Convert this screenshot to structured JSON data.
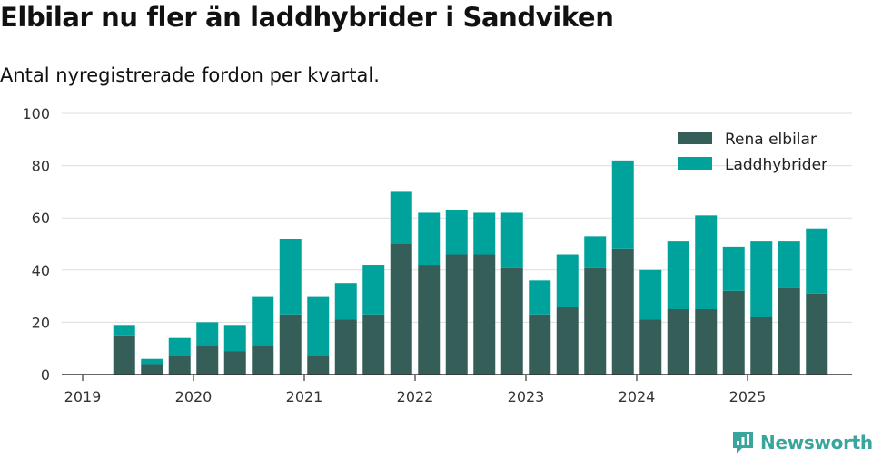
{
  "title": "Elbilar nu fler än laddhybrider i Sandviken",
  "subtitle": "Antal nyregistrerade fordon per kvartal.",
  "brand": "Newsworthy",
  "colors": {
    "elbilar": "#355e59",
    "laddhybrider": "#00a39c",
    "grid": "#dddddd",
    "axis": "#333333"
  },
  "chart_data": {
    "type": "bar",
    "stacked": true,
    "ylim": [
      0,
      100
    ],
    "yticks": [
      0,
      20,
      40,
      60,
      80,
      100
    ],
    "xticks": [
      "2019",
      "2020",
      "2021",
      "2022",
      "2023",
      "2024",
      "2025"
    ],
    "legend_position": "top-right",
    "categories": [
      "2019 Q2",
      "2019 Q3",
      "2019 Q4",
      "2020 Q1",
      "2020 Q2",
      "2020 Q3",
      "2020 Q4",
      "2021 Q1",
      "2021 Q2",
      "2021 Q3",
      "2021 Q4",
      "2022 Q1",
      "2022 Q2",
      "2022 Q3",
      "2022 Q4",
      "2023 Q1",
      "2023 Q2",
      "2023 Q3",
      "2023 Q4",
      "2024 Q1",
      "2024 Q2",
      "2024 Q3",
      "2024 Q4",
      "2025 Q1",
      "2025 Q2",
      "2025 Q3"
    ],
    "series": [
      {
        "name": "Rena elbilar",
        "color_key": "elbilar",
        "values": [
          15,
          4,
          7,
          11,
          9,
          11,
          23,
          7,
          21,
          23,
          50,
          42,
          46,
          46,
          41,
          23,
          26,
          41,
          48,
          21,
          25,
          25,
          32,
          22,
          33,
          31
        ]
      },
      {
        "name": "Laddhybrider",
        "color_key": "laddhybrider",
        "values": [
          4,
          2,
          7,
          9,
          10,
          19,
          29,
          23,
          14,
          19,
          20,
          20,
          17,
          16,
          21,
          13,
          20,
          12,
          34,
          19,
          26,
          36,
          17,
          29,
          18,
          25
        ]
      }
    ]
  }
}
